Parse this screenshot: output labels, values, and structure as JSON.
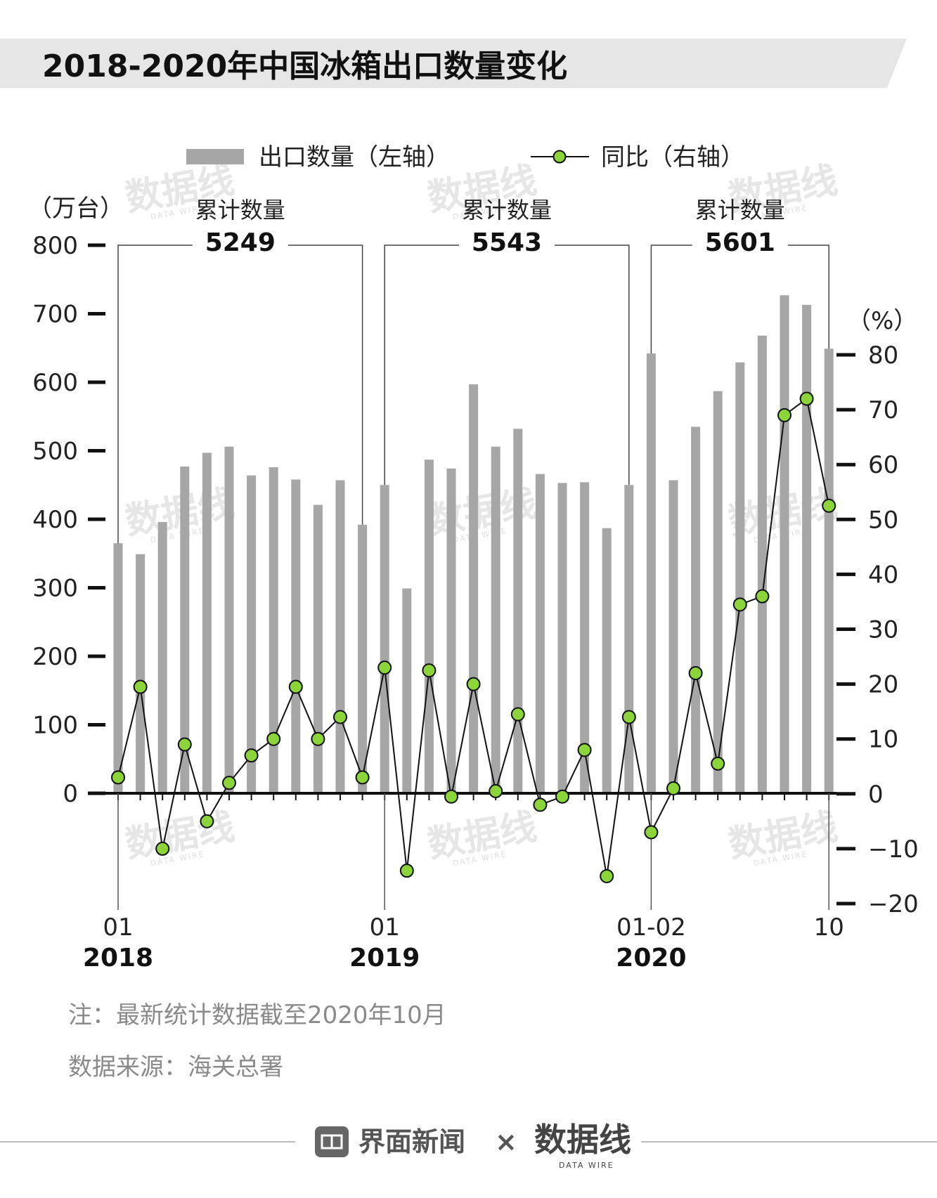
{
  "chart_data": {
    "type": "bar+line",
    "title": "2018-2020年中国冰箱出口数量变化",
    "legend": [
      "出口数量（左轴）",
      "同比（右轴）"
    ],
    "y_left_label": "（万台）",
    "y_right_label": "（%）",
    "y_left_ticks": [
      "800",
      "700",
      "600",
      "500",
      "400",
      "300",
      "200",
      "100",
      "0"
    ],
    "y_right_ticks": [
      "80",
      "70",
      "60",
      "50",
      "40",
      "30",
      "20",
      "10",
      "0",
      "−10",
      "−20"
    ],
    "y_left_lim": [
      0,
      800
    ],
    "y_right_lim": [
      -20,
      80
    ],
    "bars": [
      365,
      349,
      396,
      477,
      497,
      506,
      464,
      476,
      458,
      421,
      457,
      392,
      450,
      299,
      487,
      474,
      597,
      506,
      532,
      466,
      453,
      454,
      387,
      450,
      642,
      457,
      535,
      587,
      629,
      668,
      727,
      713,
      649
    ],
    "yoy": [
      3,
      19.5,
      -10,
      9,
      -5,
      2,
      7,
      10,
      19.5,
      10,
      14,
      3,
      23,
      -14,
      22.5,
      -0.5,
      20,
      0.5,
      14.5,
      -2,
      -0.5,
      8,
      -15,
      14,
      -7,
      1,
      22,
      5.5,
      34.5,
      36,
      69,
      72,
      52.5
    ],
    "annotations": [
      {
        "label": "累计数量",
        "total": "5249"
      },
      {
        "label": "累计数量",
        "total": "5543"
      },
      {
        "label": "累计数量",
        "total": "5601"
      }
    ],
    "x_labels": [
      {
        "month": "01",
        "year": "2018"
      },
      {
        "month": "01",
        "year": "2019"
      },
      {
        "month": "01-02",
        "year": "2020"
      },
      {
        "month": "10",
        "year": ""
      }
    ]
  },
  "notes": [
    "注：最新统计数据截至2020年10月",
    "数据来源：海关总署"
  ],
  "footer": {
    "brand": "界面新闻",
    "times": "×",
    "partner": "数据线",
    "partner_sub": "DATA WIRE"
  },
  "colors": {
    "bar": "#a6a6a6",
    "line": "#111111",
    "dot": "#8bd43a",
    "banner": "#e6e6e6"
  }
}
